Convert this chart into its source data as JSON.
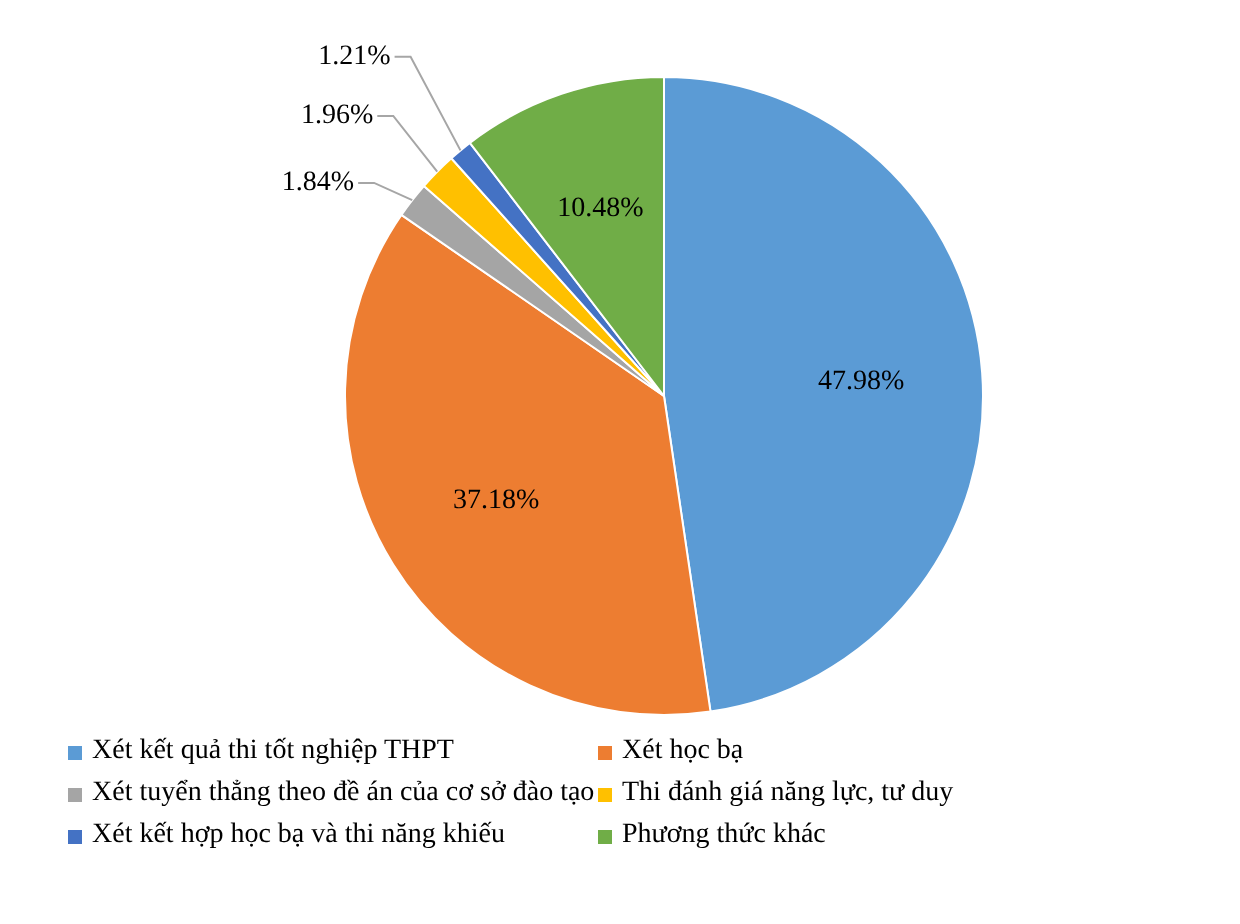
{
  "chart_data": {
    "type": "pie",
    "categories": [
      "Xét kết quả thi tốt nghiệp THPT",
      "Xét học bạ",
      "Xét tuyển thẳng theo đề án của cơ sở đào tạo",
      "Thi đánh giá năng lực, tư duy",
      "Xét kết hợp học bạ và thi năng khiếu",
      "Phương thức khác"
    ],
    "values": [
      47.98,
      37.18,
      1.84,
      1.96,
      1.21,
      10.48
    ],
    "colors": [
      "#5b9bd5",
      "#ed7d31",
      "#a5a5a5",
      "#ffc000",
      "#4472c4",
      "#70ad47"
    ],
    "value_labels": [
      "47.98%",
      "37.18%",
      "1.84%",
      "1.96%",
      "1.21%",
      "10.48%"
    ],
    "legend": "bottom"
  }
}
